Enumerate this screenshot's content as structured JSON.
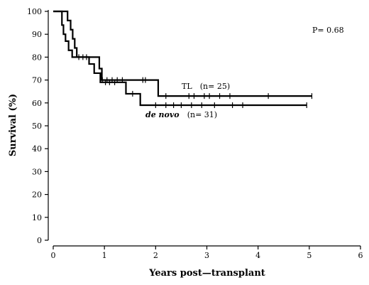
{
  "chart_data": {
    "type": "line",
    "subtype": "kaplan-meier",
    "xlabel": "Years post—transplant",
    "ylabel": "Survival (%)",
    "xlim": [
      0,
      6
    ],
    "ylim": [
      0,
      100
    ],
    "xticks": [
      0,
      1,
      2,
      3,
      4,
      5,
      6
    ],
    "yticks": [
      0,
      10,
      20,
      30,
      40,
      50,
      60,
      70,
      80,
      90,
      100
    ],
    "grid": false,
    "p_value_label": "P= 0.68",
    "series": [
      {
        "name": "TL",
        "label_suffix": "(n= 25)",
        "steps": [
          [
            0,
            100
          ],
          [
            0.28,
            96
          ],
          [
            0.34,
            92
          ],
          [
            0.38,
            88
          ],
          [
            0.42,
            84
          ],
          [
            0.46,
            80
          ],
          [
            0.9,
            75
          ],
          [
            0.95,
            70
          ],
          [
            2.05,
            63
          ],
          [
            5.05,
            63
          ]
        ],
        "censored": [
          [
            0.96,
            70
          ],
          [
            1.05,
            70
          ],
          [
            1.15,
            70
          ],
          [
            1.25,
            70
          ],
          [
            1.35,
            70
          ],
          [
            1.75,
            70
          ],
          [
            1.8,
            70
          ],
          [
            2.2,
            63
          ],
          [
            2.65,
            63
          ],
          [
            2.75,
            63
          ],
          [
            2.95,
            63
          ],
          [
            3.05,
            63
          ],
          [
            3.25,
            63
          ],
          [
            3.45,
            63
          ],
          [
            4.2,
            63
          ],
          [
            5.05,
            63
          ]
        ]
      },
      {
        "name": "de novo",
        "label_suffix": "(n= 31)",
        "steps": [
          [
            0,
            100
          ],
          [
            0.17,
            94
          ],
          [
            0.2,
            90
          ],
          [
            0.24,
            87
          ],
          [
            0.3,
            83
          ],
          [
            0.37,
            80
          ],
          [
            0.7,
            77
          ],
          [
            0.8,
            73
          ],
          [
            0.92,
            69
          ],
          [
            1.42,
            64
          ],
          [
            1.7,
            59
          ],
          [
            4.95,
            59
          ]
        ],
        "censored": [
          [
            0.5,
            80
          ],
          [
            0.58,
            80
          ],
          [
            0.65,
            80
          ],
          [
            1.02,
            69
          ],
          [
            1.1,
            69
          ],
          [
            1.2,
            69
          ],
          [
            1.55,
            64
          ],
          [
            2.0,
            59
          ],
          [
            2.2,
            59
          ],
          [
            2.35,
            59
          ],
          [
            2.5,
            59
          ],
          [
            2.7,
            59
          ],
          [
            2.9,
            59
          ],
          [
            3.15,
            59
          ],
          [
            3.5,
            59
          ],
          [
            3.7,
            59
          ],
          [
            4.95,
            59
          ]
        ]
      }
    ]
  }
}
